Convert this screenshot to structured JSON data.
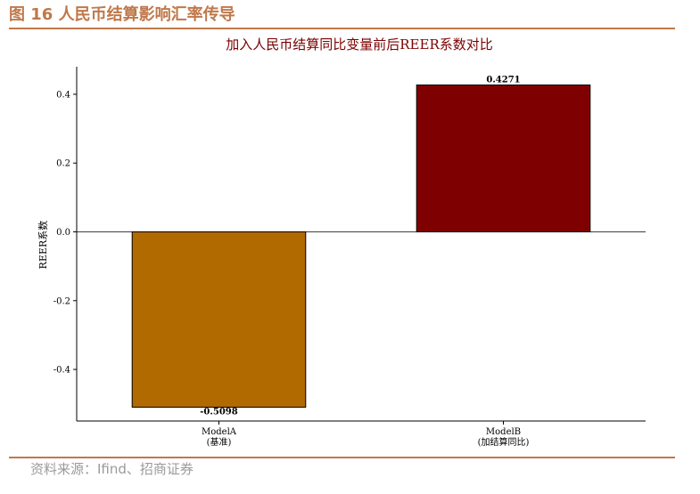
{
  "figure": {
    "header": "图 16 人民币结算影响汇率传导",
    "source": "资料来源：Ifind、招商证券"
  },
  "colors": {
    "header": "#c0784a",
    "title": "#7a0000",
    "bar_model_a": "#b06a00",
    "bar_model_b": "#7f0000"
  },
  "chart_data": {
    "type": "bar",
    "title": "加入人民币结算同比变量前后REER系数对比",
    "xlabel": "",
    "ylabel": "REER系数",
    "categories": [
      "ModelA\n(基准)",
      "ModelB\n(加结算同比)"
    ],
    "category_lines": [
      [
        "ModelA",
        "(基准)"
      ],
      [
        "ModelB",
        "(加结算同比)"
      ]
    ],
    "values": [
      -0.5098,
      0.4271
    ],
    "data_labels": [
      "-0.5098",
      "0.4271"
    ],
    "bar_colors": [
      "#b06a00",
      "#7f0000"
    ],
    "ylim": [
      -0.55,
      0.48
    ],
    "yticks": [
      -0.4,
      -0.2,
      0.0,
      0.2,
      0.4
    ],
    "ytick_labels": [
      "-0.4",
      "-0.2",
      "0.0",
      "0.2",
      "0.4"
    ],
    "zero_line": true,
    "grid": false,
    "legend": "none"
  }
}
